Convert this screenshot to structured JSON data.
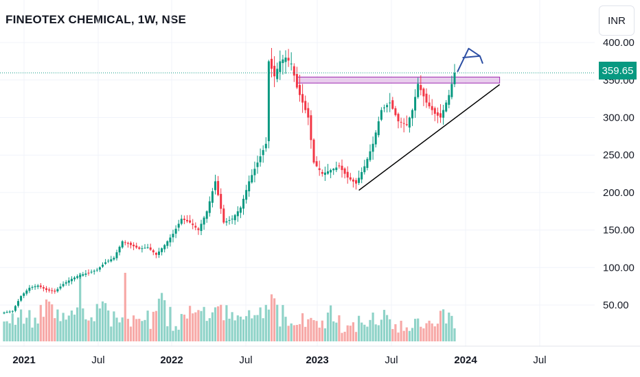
{
  "header": {
    "title": "FINEOTEX CHEMICAL, 1W, NSE",
    "currency": "INR"
  },
  "last_price": {
    "label": "359.65",
    "value": 359.65,
    "color": "#089981"
  },
  "colors": {
    "up": "#089981",
    "down": "#f23645",
    "volume_up": "#8fd3c8",
    "volume_down": "#f7a9a7",
    "resistance_zone": "#e1bee7",
    "trendline": "#000000",
    "arrow": "#2c4ea3"
  },
  "chart_data": {
    "type": "candlestick",
    "interval": "1W",
    "y_ticks": [
      "400.00",
      "350.00",
      "300.00",
      "250.00",
      "200.00",
      "150.00",
      "100.00",
      "50.00"
    ],
    "x_ticks": [
      {
        "label": "2021",
        "bold": true
      },
      {
        "label": "Jul",
        "bold": false
      },
      {
        "label": "2022",
        "bold": true
      },
      {
        "label": "Jul",
        "bold": false
      },
      {
        "label": "2023",
        "bold": true
      },
      {
        "label": "Jul",
        "bold": false
      },
      {
        "label": "2024",
        "bold": true
      },
      {
        "label": "Jul",
        "bold": false
      }
    ],
    "close_anchors": [
      [
        0,
        40
      ],
      [
        3,
        42
      ],
      [
        6,
        62
      ],
      [
        9,
        73
      ],
      [
        12,
        76
      ],
      [
        15,
        70
      ],
      [
        18,
        68
      ],
      [
        21,
        78
      ],
      [
        24,
        85
      ],
      [
        27,
        90
      ],
      [
        30,
        93
      ],
      [
        33,
        97
      ],
      [
        36,
        107
      ],
      [
        39,
        113
      ],
      [
        42,
        135
      ],
      [
        45,
        130
      ],
      [
        48,
        125
      ],
      [
        51,
        127
      ],
      [
        54,
        117
      ],
      [
        57,
        130
      ],
      [
        60,
        145
      ],
      [
        63,
        165
      ],
      [
        66,
        160
      ],
      [
        69,
        150
      ],
      [
        72,
        175
      ],
      [
        75,
        215
      ],
      [
        78,
        160
      ],
      [
        81,
        165
      ],
      [
        84,
        180
      ],
      [
        87,
        215
      ],
      [
        90,
        240
      ],
      [
        93,
        265
      ],
      [
        94,
        375
      ],
      [
        96,
        355
      ],
      [
        98,
        375
      ],
      [
        100,
        380
      ],
      [
        102,
        372
      ],
      [
        104,
        340
      ],
      [
        106,
        320
      ],
      [
        108,
        300
      ],
      [
        110,
        240
      ],
      [
        113,
        225
      ],
      [
        116,
        230
      ],
      [
        119,
        235
      ],
      [
        122,
        220
      ],
      [
        125,
        212
      ],
      [
        128,
        235
      ],
      [
        131,
        265
      ],
      [
        134,
        310
      ],
      [
        137,
        320
      ],
      [
        140,
        295
      ],
      [
        143,
        290
      ],
      [
        145,
        310
      ],
      [
        147,
        345
      ],
      [
        150,
        320
      ],
      [
        153,
        305
      ],
      [
        155,
        300
      ],
      [
        158,
        330
      ],
      [
        160,
        359.65
      ]
    ],
    "volume_pattern": [
      0.15,
      0.2,
      0.15,
      0.25,
      0.2,
      0.18,
      0.35,
      0.25,
      0.3,
      0.25,
      0.2,
      0.3,
      0.15,
      0.3,
      0.25,
      0.45,
      0.5,
      0.35,
      0.2,
      0.3
    ],
    "annotations": {
      "resistance_zone": {
        "x_from": 104,
        "x_to": 176,
        "y_from": 346,
        "y_to": 354
      },
      "ascending_trendline": {
        "from": [
          126,
          203
        ],
        "to": [
          176,
          344
        ]
      },
      "projection_arrow": {
        "points": [
          [
            161,
            361
          ],
          [
            165,
            392
          ],
          [
            169,
            382
          ],
          [
            163,
            380
          ],
          [
            169,
            382
          ],
          [
            170,
            372
          ]
        ]
      }
    }
  }
}
